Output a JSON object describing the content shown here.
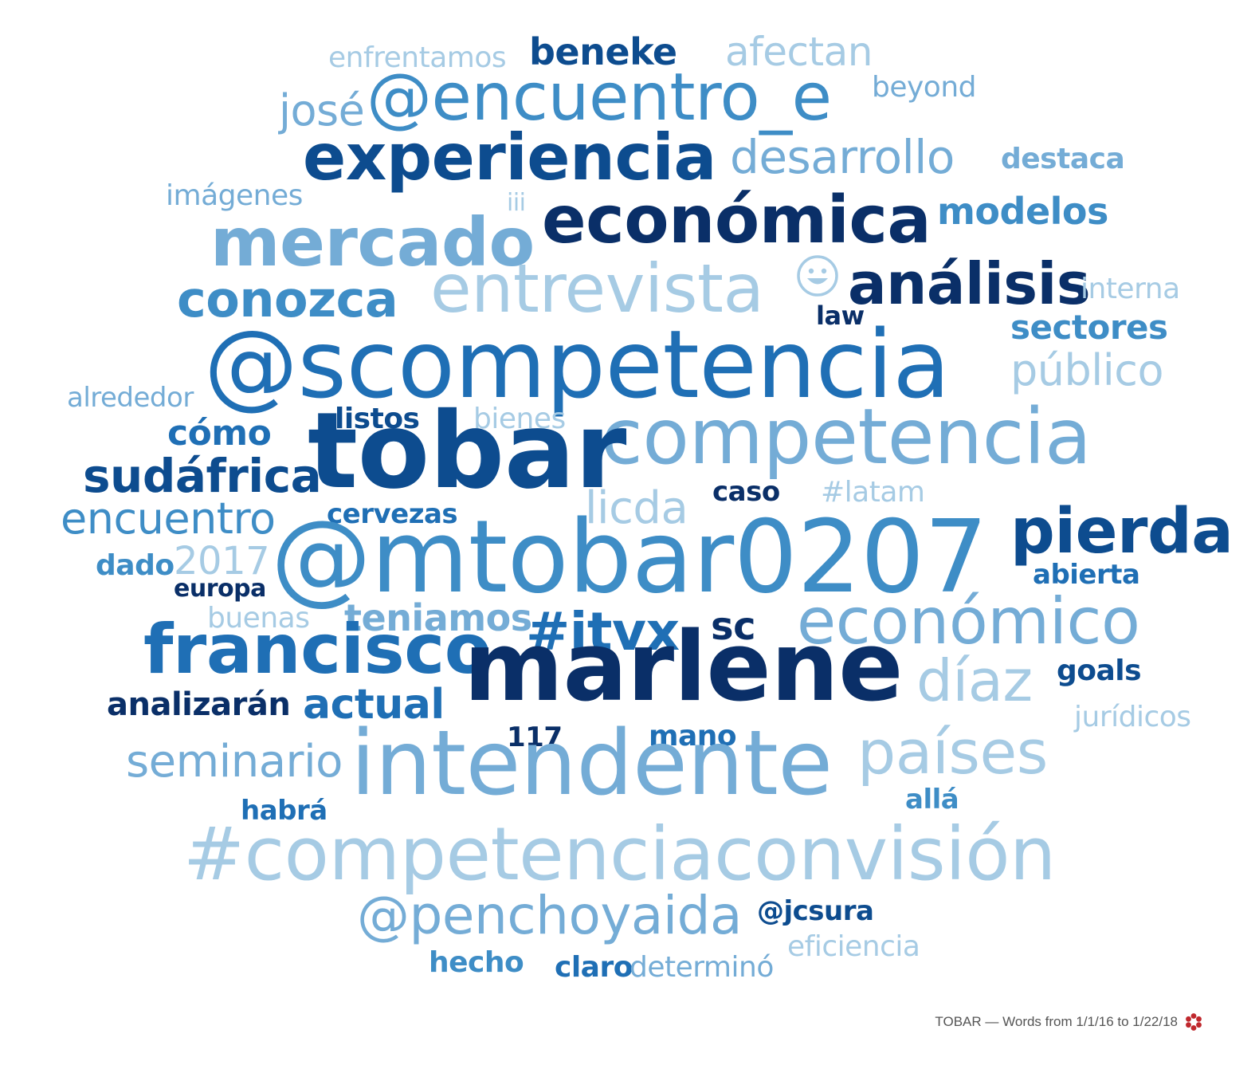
{
  "words": [
    {
      "text": "enfrentamos",
      "color": "#a6cbe4"
    },
    {
      "text": "beneke",
      "color": "#0d4c8f"
    },
    {
      "text": "afectan",
      "color": "#a6cbe4"
    },
    {
      "text": "josé",
      "color": "#74acd6"
    },
    {
      "text": "@encuentro_e",
      "color": "#3e8dc6"
    },
    {
      "text": "beyond",
      "color": "#74acd6"
    },
    {
      "text": "experiencia",
      "color": "#0d4c8f"
    },
    {
      "text": "desarrollo",
      "color": "#74acd6"
    },
    {
      "text": "destaca",
      "color": "#74acd6"
    },
    {
      "text": "imágenes",
      "color": "#74acd6"
    },
    {
      "text": "iii",
      "color": "#a6cbe4"
    },
    {
      "text": "económica",
      "color": "#0a2f68"
    },
    {
      "text": "modelos",
      "color": "#3e8dc6"
    },
    {
      "text": "mercado",
      "color": "#74acd6"
    },
    {
      "text": "entrevista",
      "color": "#a6cbe4"
    },
    {
      "text": "análisis",
      "color": "#0a2f68"
    },
    {
      "text": "interna",
      "color": "#a6cbe4"
    },
    {
      "text": "conozca",
      "color": "#3e8dc6"
    },
    {
      "text": "law",
      "color": "#0a2f68"
    },
    {
      "text": "sectores",
      "color": "#3e8dc6"
    },
    {
      "text": "@scompetencia",
      "color": "#1f6fb5"
    },
    {
      "text": "público",
      "color": "#a6cbe4"
    },
    {
      "text": "alrededor",
      "color": "#74acd6"
    },
    {
      "text": "listos",
      "color": "#0d4c8f"
    },
    {
      "text": "bienes",
      "color": "#a6cbe4"
    },
    {
      "text": "cómo",
      "color": "#1f6fb5"
    },
    {
      "text": "competencia",
      "color": "#74acd6"
    },
    {
      "text": "tobar",
      "color": "#0d4c8f"
    },
    {
      "text": "sudáfrica",
      "color": "#0d4c8f"
    },
    {
      "text": "licda",
      "color": "#a6cbe4"
    },
    {
      "text": "caso",
      "color": "#0a2f68"
    },
    {
      "text": "#latam",
      "color": "#a6cbe4"
    },
    {
      "text": "encuentro",
      "color": "#3e8dc6"
    },
    {
      "text": "cervezas",
      "color": "#1f6fb5"
    },
    {
      "text": "pierda",
      "color": "#0d4c8f"
    },
    {
      "text": "2017",
      "color": "#a6cbe4"
    },
    {
      "text": "dado",
      "color": "#3e8dc6"
    },
    {
      "text": "@mtobar0207",
      "color": "#3e8dc6"
    },
    {
      "text": "abierta",
      "color": "#1f6fb5"
    },
    {
      "text": "europa",
      "color": "#0a2f68"
    },
    {
      "text": "buenas",
      "color": "#a6cbe4"
    },
    {
      "text": "teniamos",
      "color": "#74acd6"
    },
    {
      "text": "#itvx",
      "color": "#1f6fb5"
    },
    {
      "text": "sc",
      "color": "#0a2f68"
    },
    {
      "text": "económico",
      "color": "#74acd6"
    },
    {
      "text": "francisco",
      "color": "#1f6fb5"
    },
    {
      "text": "marlene",
      "color": "#0a2f68"
    },
    {
      "text": "díaz",
      "color": "#a6cbe4"
    },
    {
      "text": "goals",
      "color": "#0d4c8f"
    },
    {
      "text": "analizarán",
      "color": "#0a2f68"
    },
    {
      "text": "actual",
      "color": "#1f6fb5"
    },
    {
      "text": "jurídicos",
      "color": "#a6cbe4"
    },
    {
      "text": "117",
      "color": "#0a2f68"
    },
    {
      "text": "mano",
      "color": "#1f6fb5"
    },
    {
      "text": "seminario",
      "color": "#74acd6"
    },
    {
      "text": "intendente",
      "color": "#74acd6"
    },
    {
      "text": "países",
      "color": "#a6cbe4"
    },
    {
      "text": "allá",
      "color": "#3e8dc6"
    },
    {
      "text": "habrá",
      "color": "#1f6fb5"
    },
    {
      "text": "#competenciaconvisión",
      "color": "#a6cbe4"
    },
    {
      "text": "@penchoyaida",
      "color": "#74acd6"
    },
    {
      "text": "@jcsura",
      "color": "#0d4c8f"
    },
    {
      "text": "eficiencia",
      "color": "#a6cbe4"
    },
    {
      "text": "hecho",
      "color": "#3e8dc6"
    },
    {
      "text": "claro",
      "color": "#1f6fb5"
    },
    {
      "text": "determinó",
      "color": "#74acd6"
    }
  ],
  "emoji": {
    "icon": "grinning-face-icon",
    "color": "#a6cbe4"
  },
  "footer": {
    "text": "TOBAR — Words from 1/1/16 to 1/22/18",
    "logo_icon": "flower-logo-icon",
    "logo_color": "#c0282d"
  }
}
